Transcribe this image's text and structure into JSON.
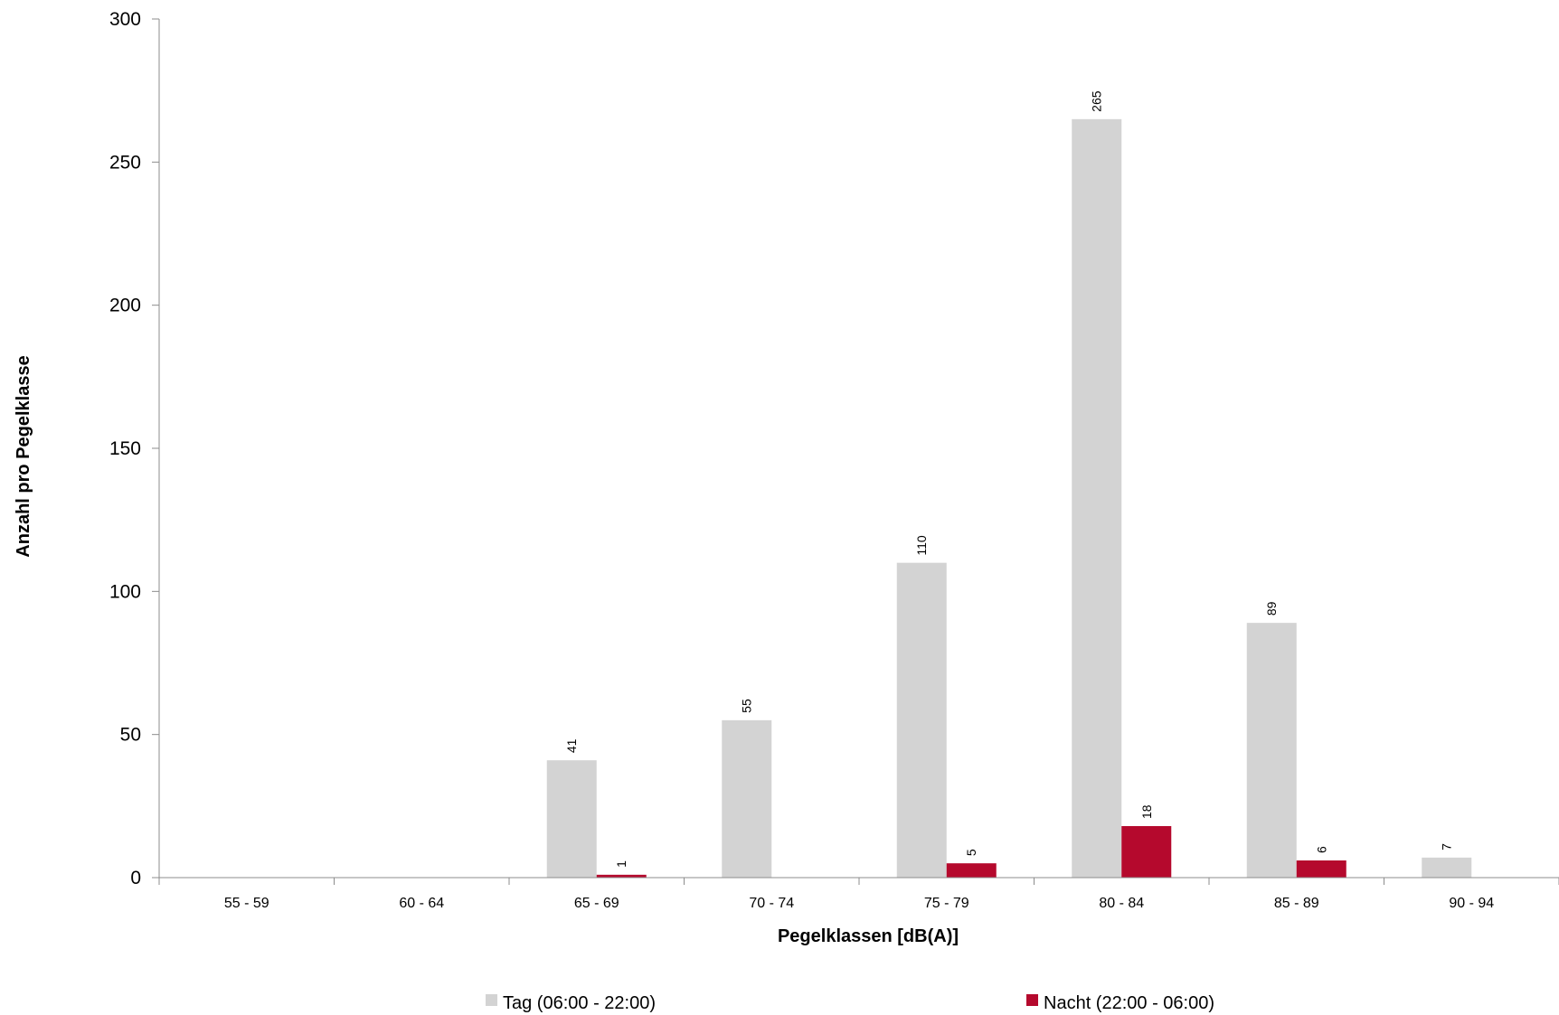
{
  "chart_data": {
    "type": "bar",
    "categories": [
      "55 - 59",
      "60 - 64",
      "65 - 69",
      "70 - 74",
      "75 - 79",
      "80 - 84",
      "85 - 89",
      "90 - 94"
    ],
    "series": [
      {
        "name": "Tag (06:00 - 22:00)",
        "color": "#d3d3d3",
        "values": [
          null,
          null,
          41,
          55,
          110,
          265,
          89,
          7
        ]
      },
      {
        "name": "Nacht (22:00 - 06:00)",
        "color": "#b5092d",
        "values": [
          null,
          null,
          1,
          null,
          5,
          18,
          6,
          null
        ]
      }
    ],
    "xlabel": "Pegelklassen [dB(A)]",
    "ylabel": "Anzahl pro Pegelklasse",
    "ylim": [
      0,
      300
    ],
    "yticks": [
      0,
      50,
      100,
      150,
      200,
      250,
      300
    ],
    "grid": false,
    "legend_position": "bottom"
  }
}
